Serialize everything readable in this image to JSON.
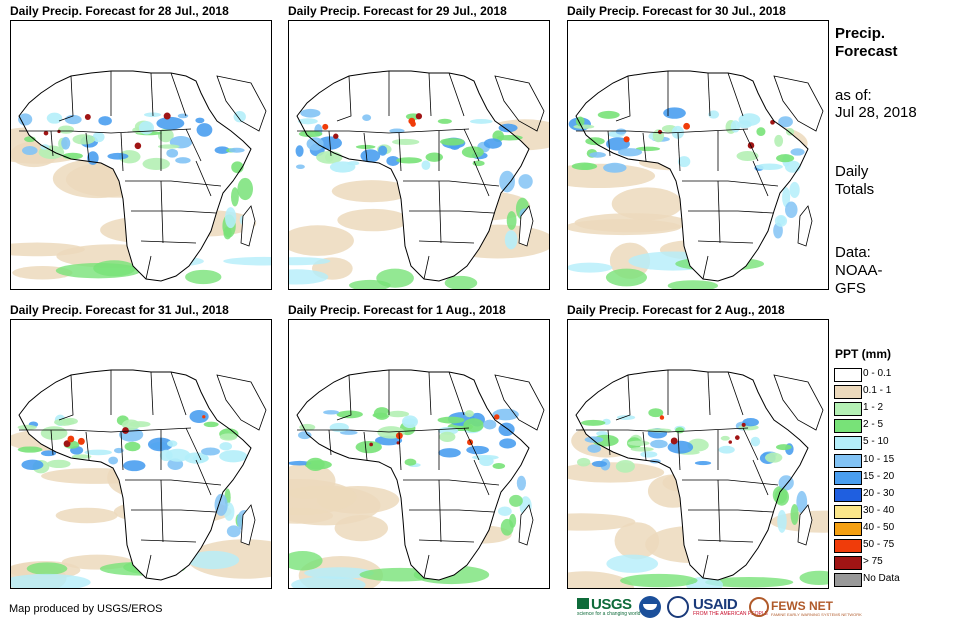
{
  "panels": [
    {
      "title": "Daily Precip. Forecast for 28 Jul., 2018"
    },
    {
      "title": "Daily Precip. Forecast for 29 Jul., 2018"
    },
    {
      "title": "Daily Precip. Forecast for 30 Jul., 2018"
    },
    {
      "title": "Daily Precip. Forecast for 31 Jul., 2018"
    },
    {
      "title": "Daily Precip. Forecast for 1 Aug., 2018"
    },
    {
      "title": "Daily Precip. Forecast for 2 Aug., 2018"
    }
  ],
  "side_info": {
    "title_line1": "Precip.",
    "title_line2": "Forecast",
    "asof_line1": "as of:",
    "asof_line2": "Jul 28, 2018",
    "totals_line1": "Daily",
    "totals_line2": "Totals",
    "data_line1": "Data:",
    "data_line2": "NOAA-",
    "data_line3": "GFS"
  },
  "legend": {
    "title": "PPT (mm)",
    "items": [
      {
        "label": "0 - 0.1",
        "color": "#ffffff"
      },
      {
        "label": "0.1 - 1",
        "color": "#ecd9bc"
      },
      {
        "label": "1 - 2",
        "color": "#b4f0b4"
      },
      {
        "label": "2 - 5",
        "color": "#78e278"
      },
      {
        "label": "5 - 10",
        "color": "#b4eefa"
      },
      {
        "label": "10 - 15",
        "color": "#82c3f5"
      },
      {
        "label": "15 - 20",
        "color": "#4a9ef0"
      },
      {
        "label": "20 - 30",
        "color": "#1f5fe0"
      },
      {
        "label": "30 - 40",
        "color": "#fbe68a"
      },
      {
        "label": "40 - 50",
        "color": "#f5a012"
      },
      {
        "label": "50 - 75",
        "color": "#f03c0a"
      },
      {
        "label": "> 75",
        "color": "#a01414"
      },
      {
        "label": "No Data",
        "color": "#999999"
      }
    ]
  },
  "footer": {
    "credit": "Map produced by USGS/EROS"
  },
  "logos": {
    "usgs": "USGS",
    "usgs_tagline": "science for a changing world",
    "usaid": "USAID",
    "usaid_tagline": "FROM THE AMERICAN PEOPLE",
    "fews": "FEWS NET",
    "fews_tagline": "FAMINE EARLY WARNING SYSTEMS NETWORK"
  }
}
